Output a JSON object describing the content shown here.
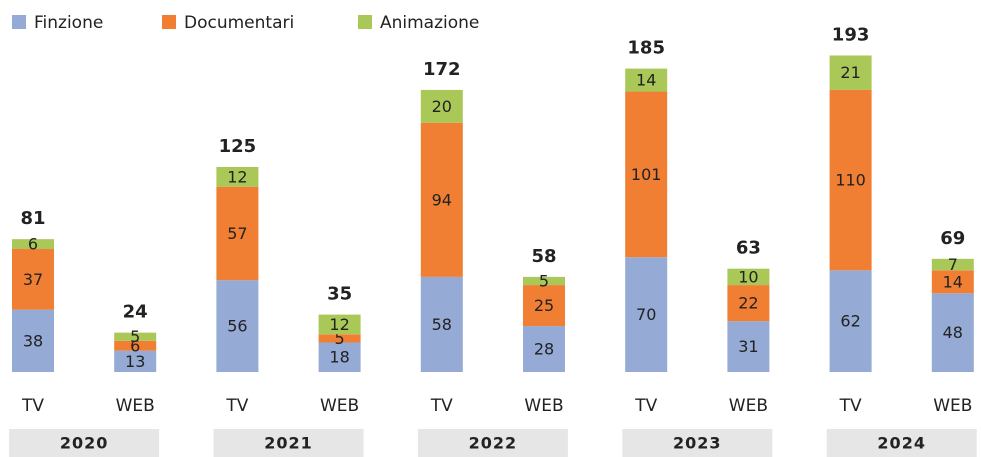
{
  "chart_data": {
    "type": "stacked_bar",
    "categories": [
      "TV",
      "WEB",
      "TV",
      "WEB",
      "TV",
      "WEB",
      "TV",
      "WEB",
      "TV",
      "WEB"
    ],
    "groups": [
      "2020",
      "2021",
      "2022",
      "2023",
      "2024"
    ],
    "series": [
      {
        "name": "Finzione",
        "color": "#95aad4",
        "values": [
          38,
          13,
          56,
          18,
          58,
          28,
          70,
          31,
          62,
          48
        ]
      },
      {
        "name": "Documentari",
        "color": "#f07f33",
        "values": [
          37,
          6,
          57,
          5,
          94,
          25,
          101,
          22,
          110,
          14
        ]
      },
      {
        "name": "Animazione",
        "color": "#a9c857",
        "values": [
          6,
          5,
          12,
          12,
          20,
          5,
          14,
          10,
          21,
          7
        ]
      }
    ],
    "totals": [
      81,
      24,
      125,
      35,
      172,
      58,
      185,
      63,
      193,
      69
    ]
  }
}
